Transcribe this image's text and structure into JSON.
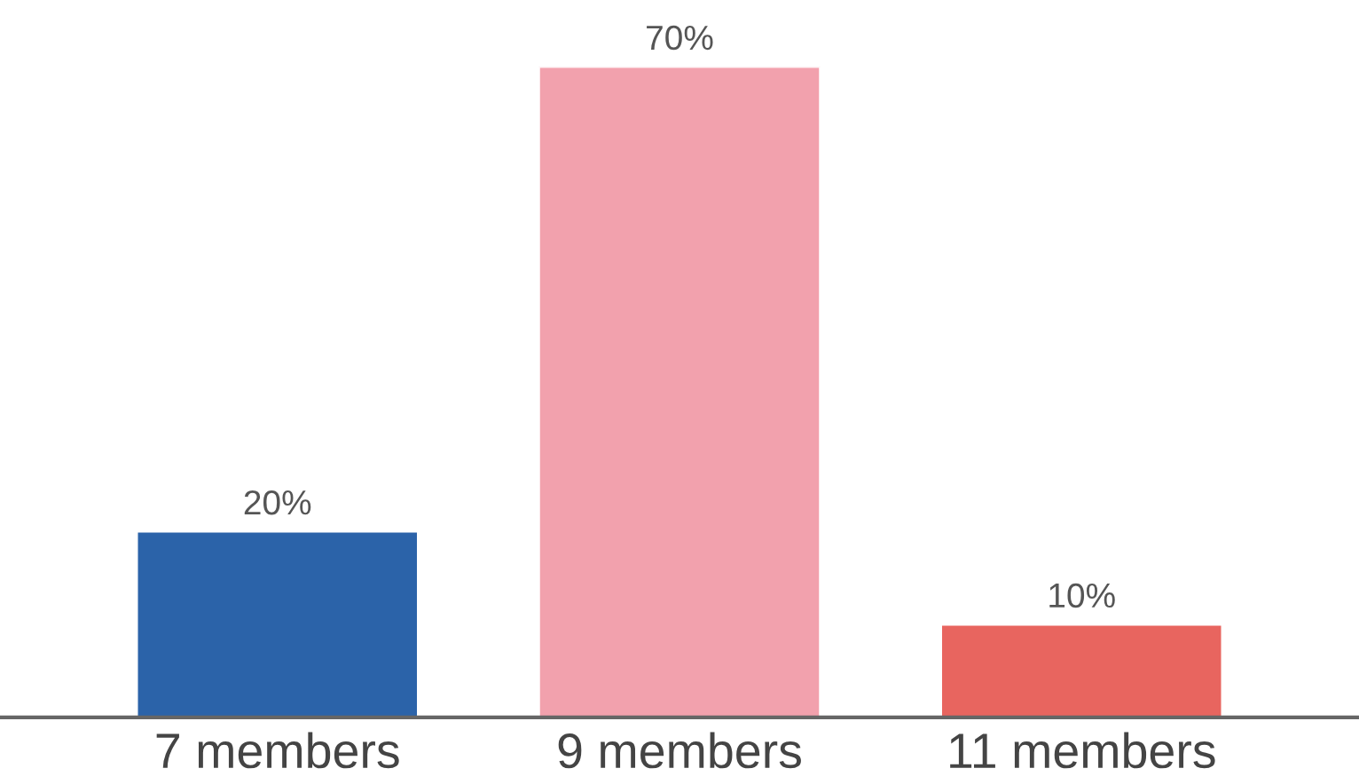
{
  "chart_data": {
    "type": "bar",
    "categories": [
      "7 members",
      "9 members",
      "11 members"
    ],
    "values": [
      20,
      70,
      10
    ],
    "colors": [
      "#2b63a9",
      "#f2a1ad",
      "#e8655f"
    ],
    "value_labels": [
      "20%",
      "70%",
      "10%"
    ],
    "grid": false,
    "legend": false
  }
}
